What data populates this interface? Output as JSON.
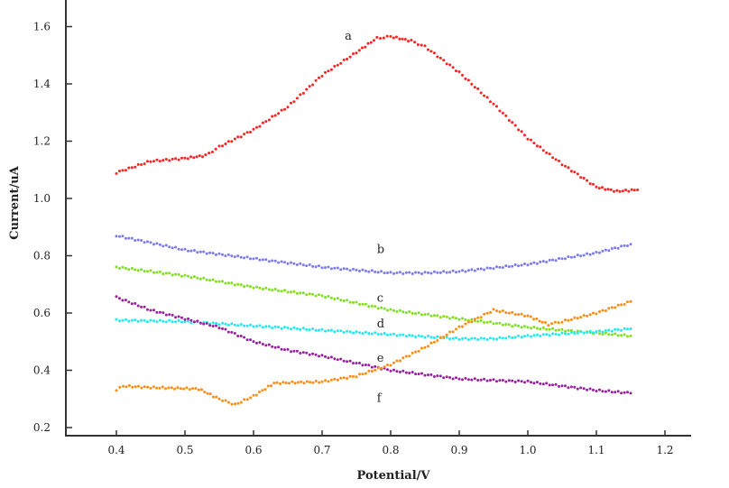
{
  "chart_data": {
    "type": "scatter",
    "title": "",
    "xlabel": "Potential/V",
    "ylabel": "Current/uA",
    "xlim": [
      0.33,
      1.24
    ],
    "ylim": [
      0.17,
      1.64
    ],
    "xticks": [
      "0.4",
      "0.5",
      "0.6",
      "0.7",
      "0.8",
      "0.9",
      "1.0",
      "1.1",
      "1.2"
    ],
    "yticks": [
      "0.2",
      "0.4",
      "0.6",
      "0.8",
      "1.0",
      "1.2",
      "1.4",
      "1.6"
    ],
    "grid": false,
    "legend": "none",
    "series": [
      {
        "name": "a",
        "color": "#ff2020",
        "x": [
          0.4,
          0.45,
          0.5,
          0.53,
          0.55,
          0.6,
          0.65,
          0.7,
          0.75,
          0.78,
          0.8,
          0.83,
          0.85,
          0.9,
          0.95,
          1.0,
          1.05,
          1.1,
          1.13,
          1.16
        ],
        "y": [
          1.09,
          1.13,
          1.14,
          1.15,
          1.18,
          1.24,
          1.32,
          1.43,
          1.51,
          1.56,
          1.565,
          1.55,
          1.53,
          1.44,
          1.33,
          1.21,
          1.12,
          1.04,
          1.025,
          1.03
        ]
      },
      {
        "name": "b",
        "color": "#7b7bf0",
        "x": [
          0.4,
          0.5,
          0.6,
          0.7,
          0.8,
          0.85,
          0.9,
          1.0,
          1.1,
          1.15
        ],
        "y": [
          0.87,
          0.82,
          0.79,
          0.76,
          0.74,
          0.74,
          0.745,
          0.77,
          0.81,
          0.84
        ]
      },
      {
        "name": "c",
        "color": "#80e020",
        "x": [
          0.4,
          0.5,
          0.6,
          0.7,
          0.8,
          0.9,
          1.0,
          1.1,
          1.15
        ],
        "y": [
          0.76,
          0.73,
          0.69,
          0.66,
          0.61,
          0.58,
          0.55,
          0.53,
          0.52
        ]
      },
      {
        "name": "d",
        "color": "#20eaf0",
        "x": [
          0.4,
          0.5,
          0.6,
          0.7,
          0.8,
          0.9,
          0.95,
          1.0,
          1.1,
          1.15
        ],
        "y": [
          0.575,
          0.57,
          0.555,
          0.54,
          0.525,
          0.51,
          0.51,
          0.52,
          0.535,
          0.545
        ]
      },
      {
        "name": "e",
        "color": "#9a1fa0",
        "x": [
          0.4,
          0.45,
          0.5,
          0.55,
          0.6,
          0.65,
          0.7,
          0.8,
          0.9,
          1.0,
          1.1,
          1.15
        ],
        "y": [
          0.655,
          0.61,
          0.58,
          0.55,
          0.5,
          0.47,
          0.45,
          0.4,
          0.37,
          0.36,
          0.33,
          0.32
        ]
      },
      {
        "name": "f",
        "color": "#ff8c10",
        "x": [
          0.4,
          0.41,
          0.45,
          0.52,
          0.55,
          0.573,
          0.6,
          0.63,
          0.7,
          0.75,
          0.8,
          0.85,
          0.9,
          0.95,
          1.0,
          1.03,
          1.05,
          1.1,
          1.15
        ],
        "y": [
          0.33,
          0.345,
          0.34,
          0.335,
          0.3,
          0.28,
          0.31,
          0.355,
          0.36,
          0.38,
          0.42,
          0.48,
          0.55,
          0.61,
          0.59,
          0.56,
          0.57,
          0.6,
          0.64
        ]
      }
    ]
  }
}
